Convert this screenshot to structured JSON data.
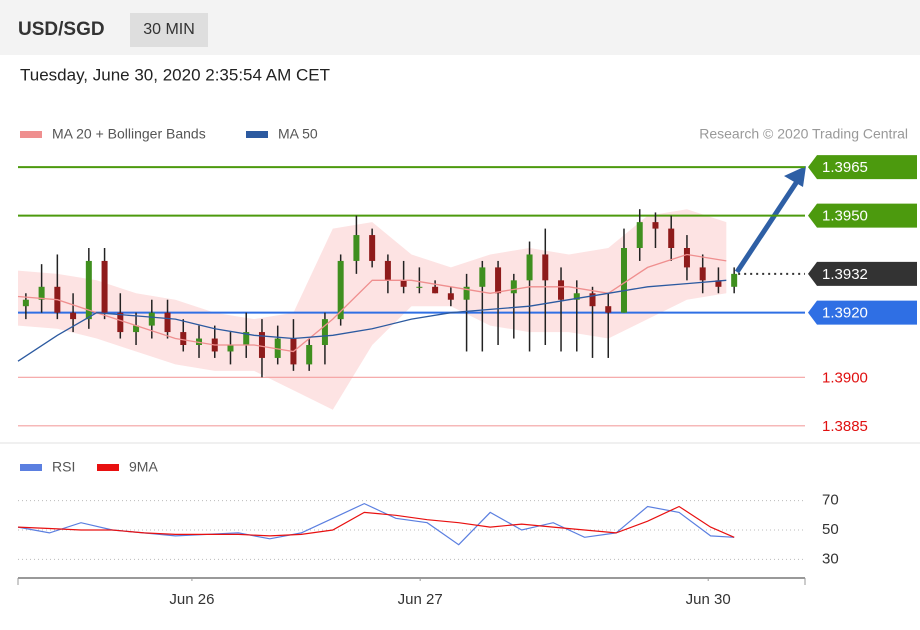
{
  "header": {
    "symbol": "USD/SGD",
    "interval": "30 MIN",
    "timestamp": "Tuesday, June 30, 2020 2:35:54 AM CET"
  },
  "chart_data": [
    {
      "type": "candlestick",
      "credit": "Research © 2020 Trading Central",
      "xlim": [
        0,
        100
      ],
      "ylim": [
        1.388,
        1.397
      ],
      "up_color": "#3f8f1f",
      "down_color": "#8e1b1b",
      "x": [
        1,
        3,
        5,
        7,
        9,
        11,
        13,
        15,
        17,
        19,
        21,
        23,
        25,
        27,
        29,
        31,
        33,
        35,
        37,
        39,
        41,
        43,
        45,
        47,
        49,
        51,
        53,
        55,
        57,
        59,
        61,
        63,
        65,
        67,
        69,
        71,
        73,
        75,
        77,
        79,
        81,
        83,
        85,
        87,
        89,
        91
      ],
      "open": [
        1.3922,
        1.3924,
        1.3928,
        1.392,
        1.3918,
        1.3936,
        1.392,
        1.3914,
        1.3916,
        1.392,
        1.3914,
        1.391,
        1.3912,
        1.3908,
        1.391,
        1.3914,
        1.3906,
        1.3912,
        1.3904,
        1.391,
        1.3918,
        1.3936,
        1.3944,
        1.3936,
        1.393,
        1.3928,
        1.3928,
        1.3926,
        1.3924,
        1.3928,
        1.3934,
        1.3926,
        1.393,
        1.3938,
        1.393,
        1.3924,
        1.3926,
        1.3922,
        1.392,
        1.394,
        1.3948,
        1.3946,
        1.394,
        1.3934,
        1.393,
        1.3928
      ],
      "high": [
        1.3926,
        1.3935,
        1.3938,
        1.3926,
        1.394,
        1.394,
        1.3926,
        1.392,
        1.3924,
        1.3924,
        1.3918,
        1.3916,
        1.3916,
        1.3914,
        1.392,
        1.3918,
        1.3916,
        1.3918,
        1.3912,
        1.392,
        1.3938,
        1.395,
        1.3946,
        1.3938,
        1.3936,
        1.3934,
        1.393,
        1.3928,
        1.3932,
        1.3936,
        1.3936,
        1.3932,
        1.3942,
        1.3946,
        1.3934,
        1.393,
        1.3928,
        1.3926,
        1.3946,
        1.3952,
        1.3951,
        1.395,
        1.3944,
        1.3938,
        1.3934,
        1.3934
      ],
      "low": [
        1.3918,
        1.392,
        1.3918,
        1.3914,
        1.3915,
        1.3918,
        1.3912,
        1.391,
        1.3912,
        1.3912,
        1.3908,
        1.3906,
        1.3906,
        1.3904,
        1.3906,
        1.39,
        1.3904,
        1.3902,
        1.3902,
        1.3904,
        1.3916,
        1.3932,
        1.3934,
        1.3926,
        1.3926,
        1.3926,
        1.3926,
        1.3922,
        1.3908,
        1.3908,
        1.391,
        1.3912,
        1.3908,
        1.391,
        1.3908,
        1.3908,
        1.3906,
        1.3906,
        1.392,
        1.3936,
        1.394,
        1.3936,
        1.393,
        1.3926,
        1.3926,
        1.3926
      ],
      "close": [
        1.3924,
        1.3928,
        1.392,
        1.3918,
        1.3936,
        1.392,
        1.3914,
        1.3916,
        1.392,
        1.3914,
        1.391,
        1.3912,
        1.3908,
        1.391,
        1.3914,
        1.3906,
        1.3912,
        1.3904,
        1.391,
        1.3918,
        1.3936,
        1.3944,
        1.3936,
        1.393,
        1.3928,
        1.3928,
        1.3926,
        1.3924,
        1.3928,
        1.3934,
        1.3926,
        1.393,
        1.3938,
        1.393,
        1.3924,
        1.3926,
        1.3922,
        1.392,
        1.394,
        1.3948,
        1.3946,
        1.394,
        1.3934,
        1.393,
        1.3928,
        1.3932
      ],
      "indicator_x": [
        0,
        5,
        10,
        15,
        20,
        25,
        30,
        35,
        40,
        45,
        50,
        55,
        60,
        65,
        70,
        75,
        80,
        85,
        90
      ],
      "indicators": [
        {
          "name": "MA 20 + Bollinger Bands",
          "color": "#ef8f8f",
          "band_color": "#fde3e3",
          "values": [
            1.3925,
            1.3924,
            1.392,
            1.3916,
            1.3912,
            1.391,
            1.391,
            1.3908,
            1.3918,
            1.393,
            1.393,
            1.3928,
            1.3926,
            1.3928,
            1.3928,
            1.3926,
            1.3934,
            1.3938,
            1.3936
          ],
          "upper": [
            1.3933,
            1.3932,
            1.393,
            1.3926,
            1.3924,
            1.392,
            1.3918,
            1.392,
            1.3946,
            1.3948,
            1.3938,
            1.3934,
            1.3938,
            1.394,
            1.3938,
            1.394,
            1.395,
            1.3952,
            1.3948
          ],
          "lower": [
            1.3916,
            1.3915,
            1.3912,
            1.3908,
            1.3904,
            1.3902,
            1.3902,
            1.3896,
            1.389,
            1.391,
            1.3922,
            1.3922,
            1.3916,
            1.3914,
            1.3914,
            1.3912,
            1.3918,
            1.3924,
            1.3926
          ]
        },
        {
          "name": "MA 50",
          "color": "#2c5aa0",
          "values": [
            1.3905,
            1.3913,
            1.392,
            1.3919,
            1.3918,
            1.3915,
            1.3913,
            1.3912,
            1.3913,
            1.3915,
            1.3918,
            1.392,
            1.3921,
            1.3922,
            1.3924,
            1.3926,
            1.3928,
            1.3929,
            1.393
          ]
        }
      ],
      "levels": [
        {
          "value": 1.3965,
          "label": "1.3965",
          "color": "#4c9a0e",
          "line": "solid",
          "boxed": true
        },
        {
          "value": 1.395,
          "label": "1.3950",
          "color": "#4c9a0e",
          "line": "solid",
          "boxed": true
        },
        {
          "value": 1.3932,
          "label": "1.3932",
          "color": "#333333",
          "line": "dotted",
          "boxed": true
        },
        {
          "value": 1.392,
          "label": "1.3920",
          "color": "#2f6fe4",
          "line": "solid",
          "boxed": true
        },
        {
          "value": 1.39,
          "label": "1.3900",
          "color": "#f4a0a0",
          "line": "solid",
          "boxed": false
        },
        {
          "value": 1.3885,
          "label": "1.3885",
          "color": "#f4a0a0",
          "line": "solid",
          "boxed": false
        }
      ]
    },
    {
      "type": "line",
      "xlim": [
        0,
        100
      ],
      "ylim": [
        20,
        80
      ],
      "yticks": [
        30,
        50,
        70
      ],
      "grid": true,
      "xticks": [
        {
          "value": 22.1,
          "label": "Jun 26"
        },
        {
          "value": 51.1,
          "label": "Jun 27"
        },
        {
          "value": 87.7,
          "label": "Jun 30"
        }
      ],
      "x": [
        0,
        4,
        8,
        12,
        16,
        20,
        24,
        28,
        32,
        36,
        40,
        44,
        48,
        52,
        56,
        60,
        64,
        68,
        72,
        76,
        80,
        84,
        88,
        91
      ],
      "series": [
        {
          "name": "RSI",
          "color": "#5b7fe0",
          "values": [
            52,
            48,
            55,
            50,
            48,
            46,
            47,
            48,
            44,
            48,
            58,
            68,
            58,
            55,
            40,
            62,
            50,
            55,
            45,
            48,
            66,
            62,
            46,
            45
          ]
        },
        {
          "name": "9MA",
          "color": "#e81010",
          "values": [
            52,
            51,
            50,
            50,
            48,
            47,
            47,
            47,
            46,
            47,
            50,
            62,
            60,
            57,
            55,
            52,
            54,
            52,
            50,
            48,
            56,
            66,
            52,
            45
          ]
        }
      ]
    }
  ]
}
